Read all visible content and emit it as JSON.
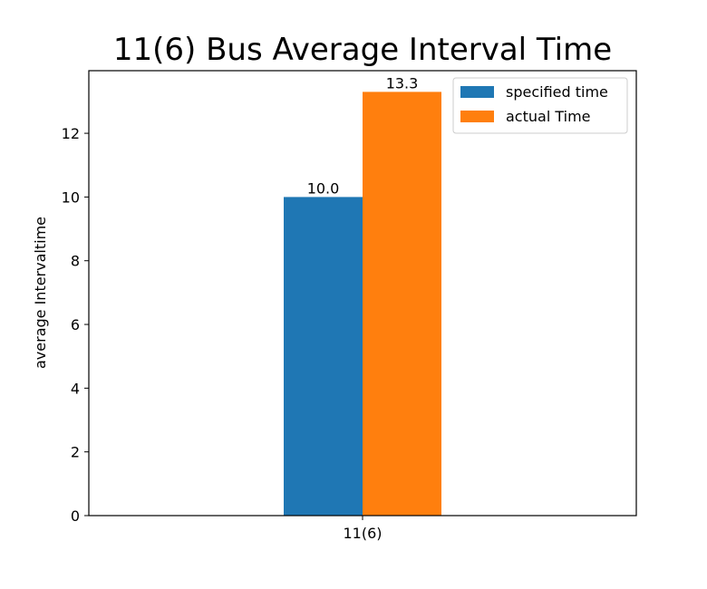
{
  "chart_data": {
    "type": "bar",
    "title": "11(6) Bus Average Interval Time",
    "xlabel": "",
    "ylabel": "average Intervaltime",
    "categories": [
      "11(6)"
    ],
    "series": [
      {
        "name": "specified time",
        "values": [
          10.0
        ],
        "labels": [
          "10.0"
        ],
        "color": "#1f77b4"
      },
      {
        "name": "actual Time",
        "values": [
          13.3
        ],
        "labels": [
          "13.3"
        ],
        "color": "#ff7f0e"
      }
    ],
    "ylim": [
      0,
      13.965
    ],
    "yticks": [
      0,
      2,
      4,
      6,
      8,
      10,
      12
    ],
    "grid": false,
    "legend_position": "top-right"
  }
}
